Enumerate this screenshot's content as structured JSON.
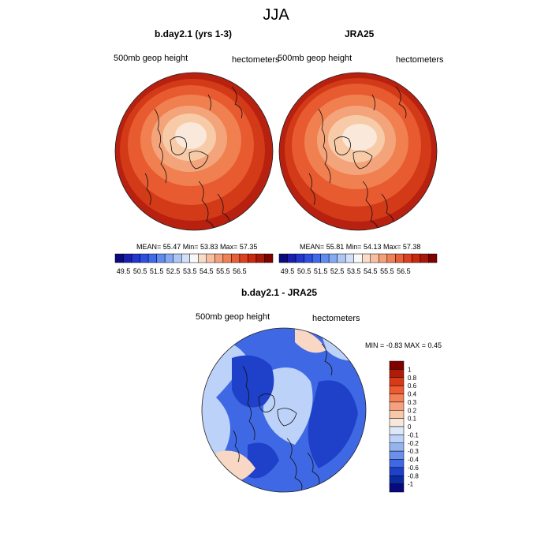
{
  "figure": {
    "title": "JJA"
  },
  "panels": [
    {
      "title": "b.day2.1 (yrs 1-3)",
      "left_label": "500mb geop height",
      "right_label": "hectometers",
      "stats": "MEAN=  55.47  Min=  53.83  Max=  57.35"
    },
    {
      "title": "JRA25",
      "left_label": "500mb geop height",
      "right_label": "hectometers",
      "stats": "MEAN=  55.81  Min=  54.13  Max=  57.38"
    }
  ],
  "diff_panel": {
    "title": "b.day2.1 - JRA25",
    "left_label": "500mb geop height",
    "right_label": "hectometers",
    "stats": "MIN =  -0.83 MAX =   0.45"
  },
  "colorbar_top": {
    "tick_labels": [
      "49.5",
      "50.5",
      "51.5",
      "52.5",
      "53.5",
      "54.5",
      "55.5",
      "56.5"
    ],
    "colors": [
      "#0a0a80",
      "#1b1fb0",
      "#2236d0",
      "#2e4fe0",
      "#3f6ae8",
      "#5f8cf0",
      "#86aaf2",
      "#aec7f5",
      "#d2e0f8",
      "#f8f8f8",
      "#f8dcc8",
      "#f6c0a0",
      "#f4a07a",
      "#f08058",
      "#e86038",
      "#dc4020",
      "#c82a10",
      "#a81808",
      "#800000"
    ]
  },
  "colorbar_diff": {
    "levels": [
      "1",
      "0.8",
      "0.6",
      "0.4",
      "0.3",
      "0.2",
      "0.1",
      "0",
      "-0.1",
      "-0.2",
      "-0.3",
      "-0.4",
      "-0.6",
      "-0.8",
      "-1"
    ],
    "colors": [
      "#800000",
      "#b01c08",
      "#d83a18",
      "#f05a30",
      "#f48058",
      "#f6a080",
      "#f8c8a8",
      "#f8e8dc",
      "#dce8f8",
      "#bdd2f8",
      "#94b4f0",
      "#6a90ea",
      "#3f68e4",
      "#1f40c8",
      "#0a2aa0",
      "#080880"
    ]
  },
  "map_colors": {
    "outer": "#b82010",
    "ring2": "#d23a18",
    "ring3": "#e85a30",
    "ring4": "#f08050",
    "ring5": "#f4a47a",
    "ring6": "#f8cba8",
    "center": "#fae8da",
    "diff_base": "#3f68e4",
    "diff_light": "#bdd2f8",
    "diff_dark": "#1f40c8",
    "diff_warm": "#f8d8c4"
  }
}
